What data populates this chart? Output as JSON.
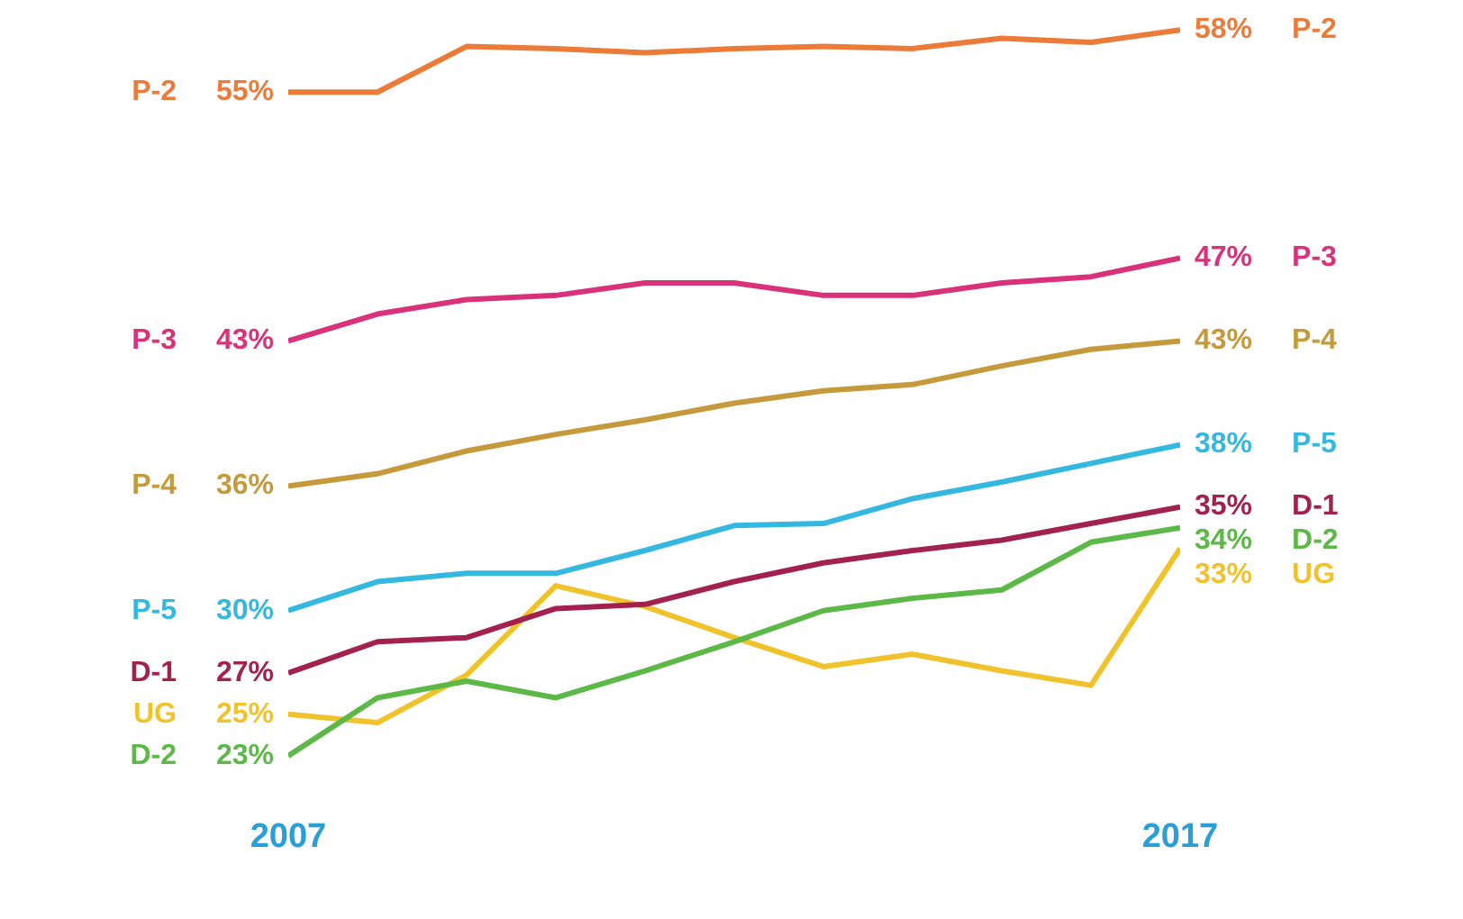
{
  "chart_data": {
    "type": "line",
    "x": [
      2007,
      2008,
      2009,
      2010,
      2011,
      2012,
      2013,
      2014,
      2015,
      2016,
      2017
    ],
    "xlim": [
      2007,
      2017
    ],
    "xticks": [
      2007,
      2017
    ],
    "tick_labels": "x",
    "grid": false,
    "legend": false,
    "marker": "none",
    "line_style": "solid",
    "series": [
      {
        "name": "P-2",
        "color": "#ec7b3a",
        "values": [
          55,
          55,
          57.2,
          57.1,
          56.9,
          57.1,
          57.2,
          57.1,
          57.6,
          57.4,
          58
        ],
        "value_labels": [
          "55%",
          null,
          null,
          null,
          null,
          null,
          null,
          null,
          null,
          null,
          "58%"
        ]
      },
      {
        "name": "P-3",
        "color": "#d9327b",
        "values": [
          43,
          44.3,
          45,
          45.2,
          45.8,
          45.8,
          45.2,
          45.2,
          45.8,
          46.1,
          47
        ],
        "value_labels": [
          "43%",
          null,
          null,
          null,
          null,
          null,
          null,
          null,
          null,
          null,
          "47%"
        ]
      },
      {
        "name": "P-4",
        "color": "#c49a3c",
        "values": [
          36,
          36.6,
          37.7,
          38.5,
          39.2,
          40,
          40.6,
          40.9,
          41.8,
          42.6,
          43
        ],
        "value_labels": [
          "36%",
          null,
          null,
          null,
          null,
          null,
          null,
          null,
          null,
          null,
          "43%"
        ]
      },
      {
        "name": "P-5",
        "color": "#35b8e0",
        "values": [
          30,
          31.4,
          31.8,
          31.8,
          32.9,
          34.1,
          34.2,
          35.4,
          36.2,
          37.1,
          38
        ],
        "value_labels": [
          "30%",
          null,
          null,
          null,
          null,
          null,
          null,
          null,
          null,
          null,
          "38%"
        ]
      },
      {
        "name": "D-1",
        "color": "#a3214f",
        "values": [
          27,
          28.5,
          28.7,
          30.1,
          30.3,
          31.4,
          32.3,
          32.9,
          33.4,
          34.2,
          35
        ],
        "value_labels": [
          "27%",
          null,
          null,
          null,
          null,
          null,
          null,
          null,
          null,
          null,
          "35%"
        ]
      },
      {
        "name": "D-2",
        "color": "#5cb847",
        "values": [
          23,
          25.8,
          26.6,
          25.8,
          27.1,
          28.5,
          30,
          30.6,
          31,
          33.3,
          34
        ],
        "value_labels": [
          "23%",
          null,
          null,
          null,
          null,
          null,
          null,
          null,
          null,
          null,
          "34%"
        ]
      },
      {
        "name": "UG",
        "color": "#f0c22c",
        "values": [
          25,
          24.6,
          26.9,
          31.2,
          30.2,
          28.7,
          27.3,
          27.9,
          27.1,
          26.4,
          33
        ],
        "value_labels": [
          "25%",
          null,
          null,
          null,
          null,
          null,
          null,
          null,
          null,
          null,
          "33%"
        ]
      }
    ]
  }
}
